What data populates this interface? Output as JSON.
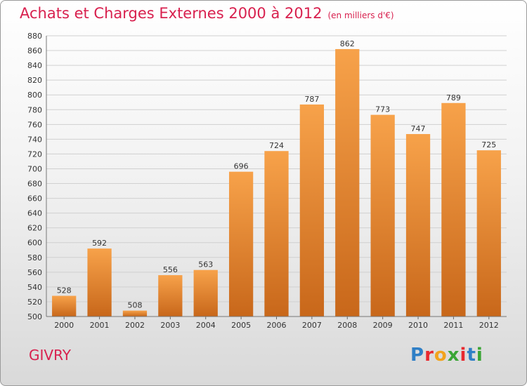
{
  "header": {
    "title": "Achats et Charges Externes 2000 à 2012",
    "subtitle": "(en milliers d'€)"
  },
  "footer": {
    "commune": "GIVRY",
    "logo": "Proxiti"
  },
  "colors": {
    "accent": "#d8204e",
    "bar_top": "#f7a24a",
    "bar_bottom": "#c8671a"
  },
  "chart_data": {
    "type": "bar",
    "title": "Achats et Charges Externes 2000 à 2012",
    "subtitle": "(en milliers d'€)",
    "categories": [
      "2000",
      "2001",
      "2002",
      "2003",
      "2004",
      "2005",
      "2006",
      "2007",
      "2008",
      "2009",
      "2010",
      "2011",
      "2012"
    ],
    "values": [
      528,
      592,
      508,
      556,
      563,
      696,
      724,
      787,
      862,
      773,
      747,
      789,
      725
    ],
    "ylim": [
      500,
      880
    ],
    "ytick_step": 20,
    "grid": true,
    "legend": "none"
  }
}
